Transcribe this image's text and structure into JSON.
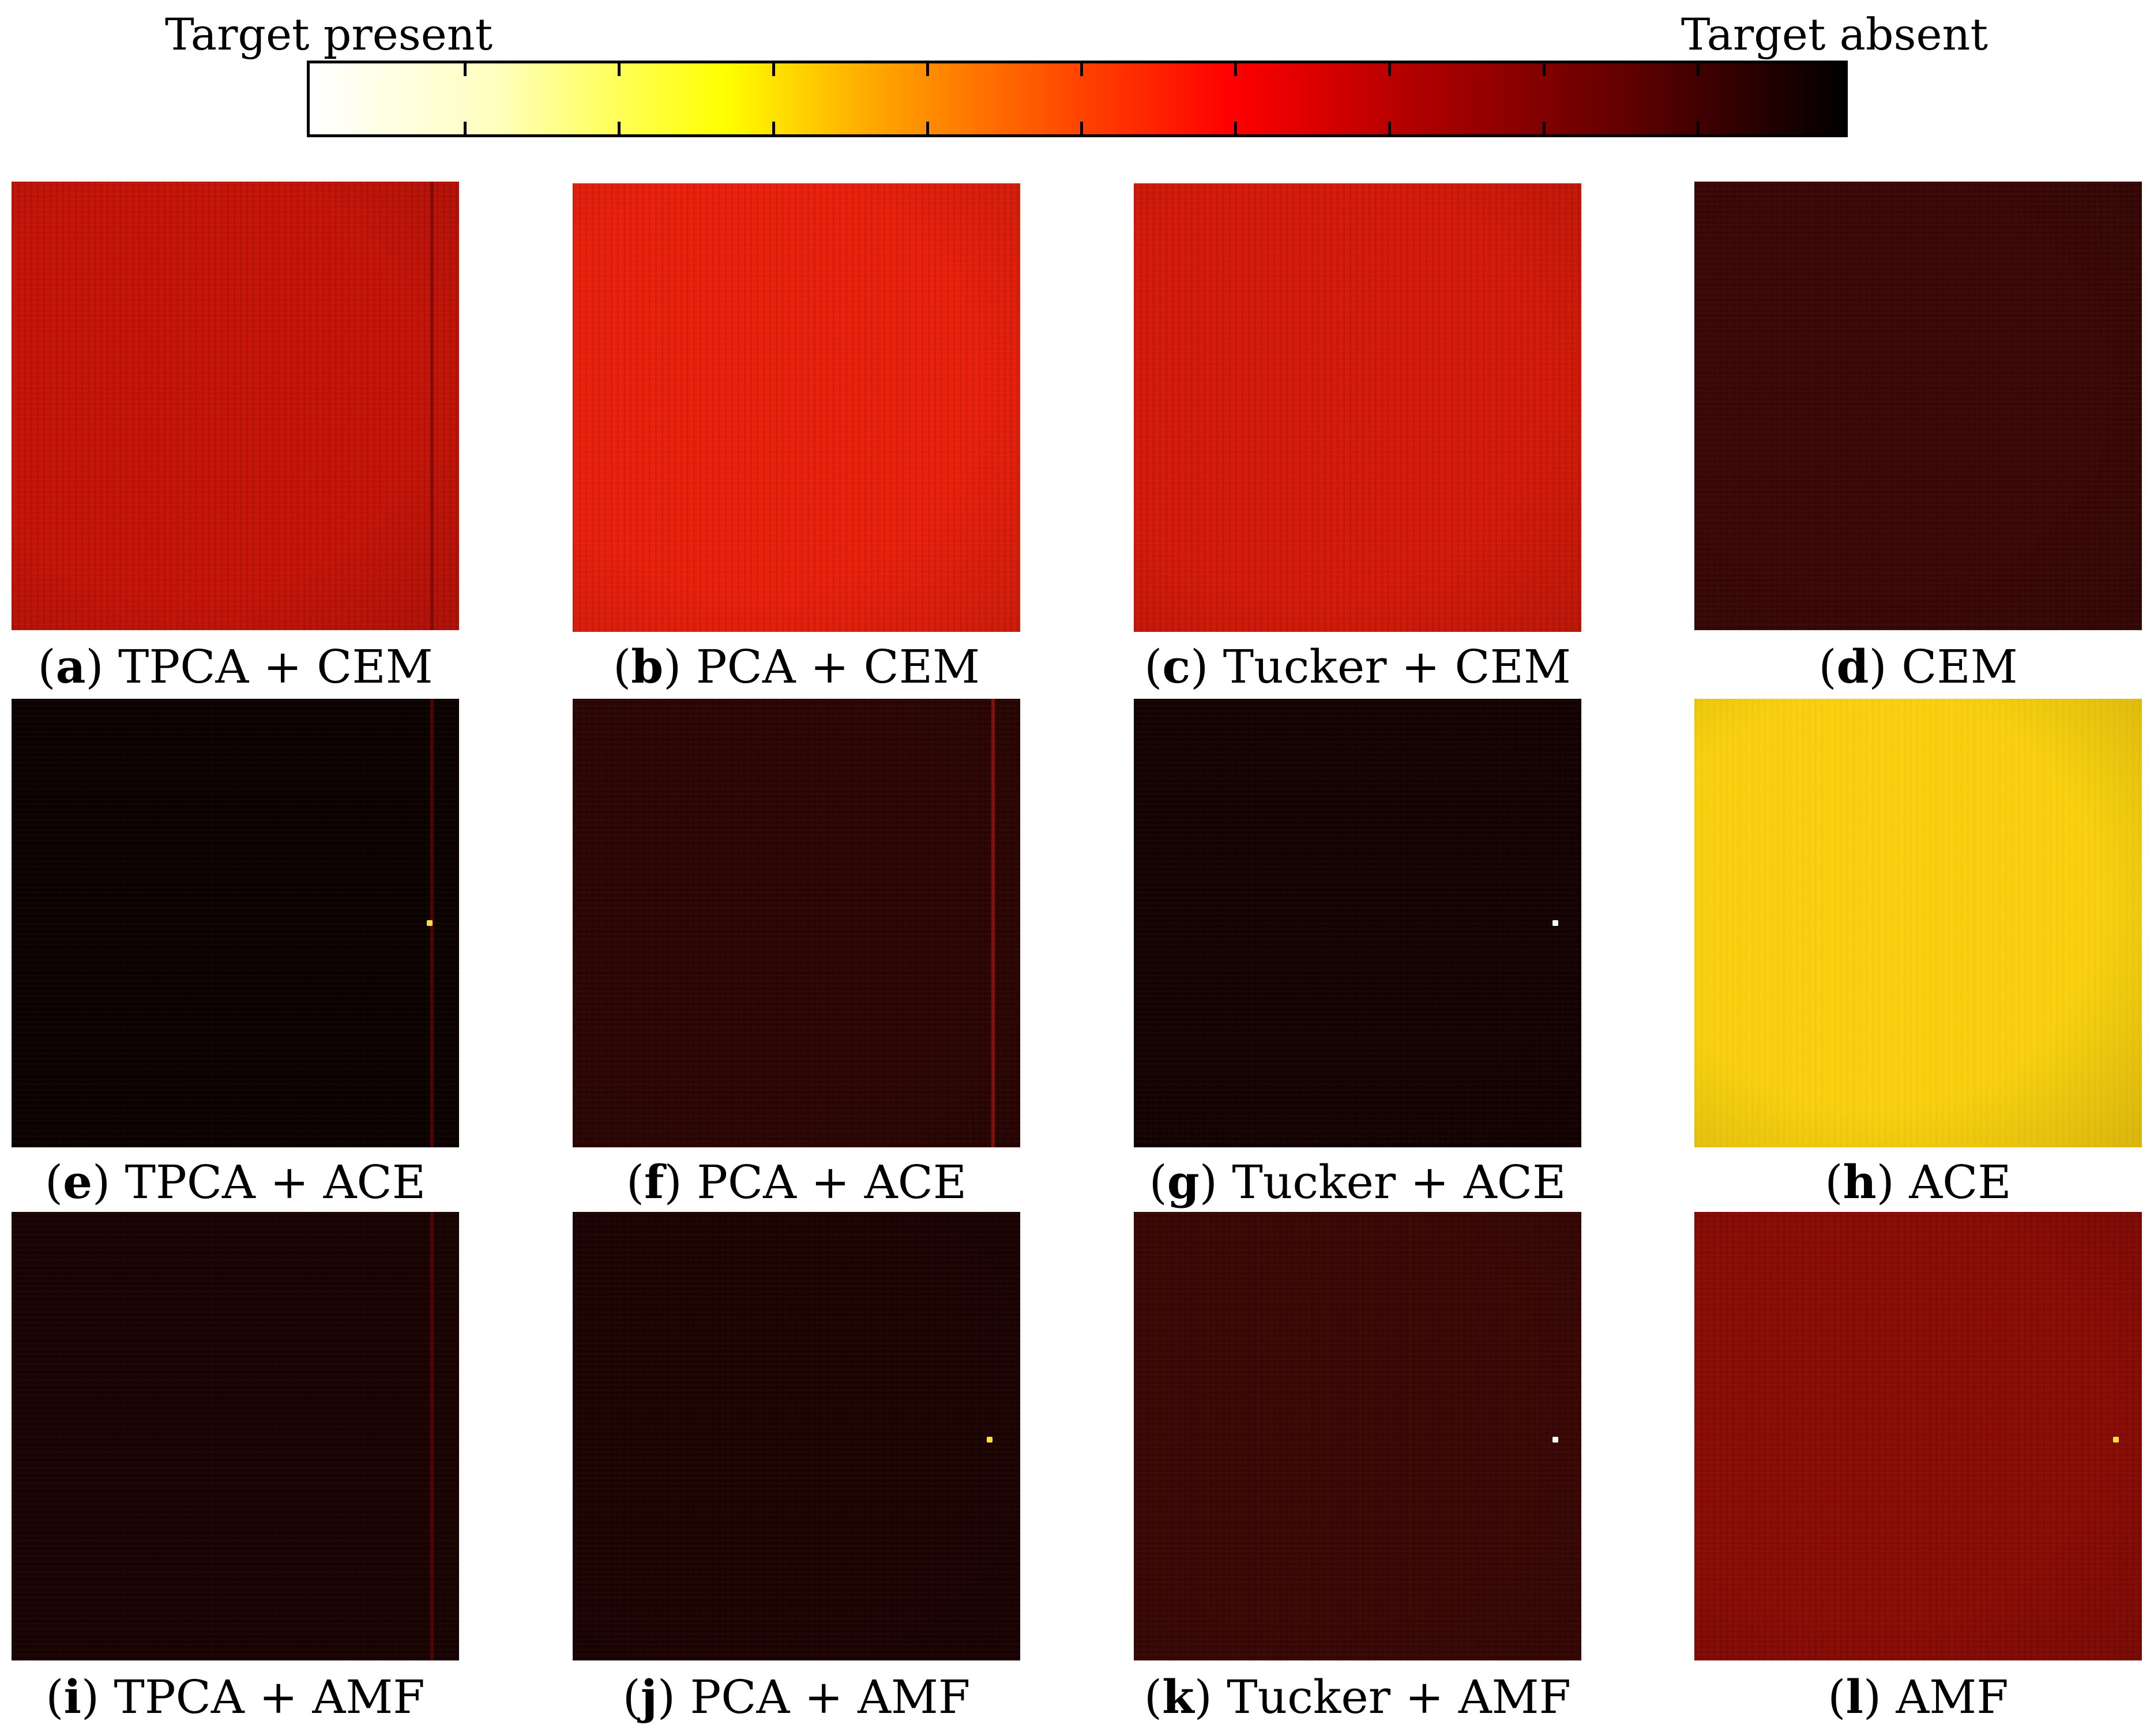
{
  "colorbar": {
    "left_label": "Target present",
    "right_label": "Target absent",
    "gradient_colors": [
      "#ffffff",
      "#ffff00",
      "#ffa500",
      "#ff0000",
      "#800000",
      "#000000"
    ]
  },
  "panels": [
    {
      "letter": "a",
      "title": "TPCA + CEM",
      "color": "#c41408"
    },
    {
      "letter": "b",
      "title": "PCA + CEM",
      "color": "#e8200c"
    },
    {
      "letter": "c",
      "title": "Tucker + CEM",
      "color": "#d41a0a"
    },
    {
      "letter": "d",
      "title": "CEM",
      "color": "#3a0806"
    },
    {
      "letter": "e",
      "title": "TPCA + ACE",
      "color": "#0d0202"
    },
    {
      "letter": "f",
      "title": "PCA + ACE",
      "color": "#2c0604"
    },
    {
      "letter": "g",
      "title": "Tucker + ACE",
      "color": "#140302"
    },
    {
      "letter": "h",
      "title": "ACE",
      "color": "#f8d010"
    },
    {
      "letter": "i",
      "title": "TPCA + AMF",
      "color": "#1a0403"
    },
    {
      "letter": "j",
      "title": "PCA + AMF",
      "color": "#1c0403"
    },
    {
      "letter": "k",
      "title": "Tucker + AMF",
      "color": "#3a0805"
    },
    {
      "letter": "l",
      "title": "AMF",
      "color": "#8a0c06"
    }
  ]
}
